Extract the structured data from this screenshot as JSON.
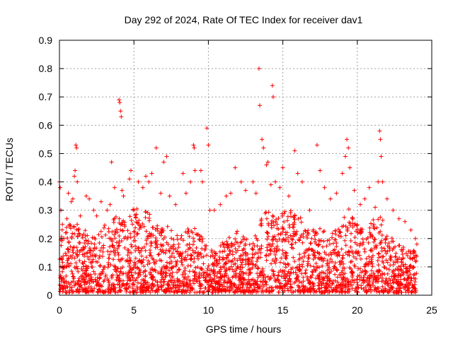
{
  "chart_data": {
    "type": "scatter",
    "title": "Day 292 of 2024, Rate Of TEC Index for receiver dav1",
    "xlabel": "GPS time / hours",
    "ylabel": "ROTI / TECUs",
    "xlim": [
      0,
      25
    ],
    "ylim": [
      0,
      0.9
    ],
    "xticks": [
      "0",
      "5",
      "10",
      "15",
      "20",
      "25"
    ],
    "yticks": [
      "0",
      "0.1",
      "0.2",
      "0.3",
      "0.4",
      "0.5",
      "0.6",
      "0.7",
      "0.8",
      "0.9"
    ],
    "grid": true,
    "marker": "+",
    "color": "#ff0000",
    "points": [
      [
        0.0,
        0.4
      ],
      [
        0.05,
        0.38
      ],
      [
        0.1,
        0.3
      ],
      [
        0.2,
        0.25
      ],
      [
        0.3,
        0.2
      ],
      [
        0.5,
        0.27
      ],
      [
        0.6,
        0.36
      ],
      [
        0.8,
        0.33
      ],
      [
        0.9,
        0.34
      ],
      [
        1.0,
        0.42
      ],
      [
        1.05,
        0.44
      ],
      [
        1.1,
        0.53
      ],
      [
        1.15,
        0.52
      ],
      [
        1.2,
        0.4
      ],
      [
        1.4,
        0.28
      ],
      [
        1.8,
        0.35
      ],
      [
        2.0,
        0.34
      ],
      [
        2.3,
        0.3
      ],
      [
        2.5,
        0.28
      ],
      [
        2.8,
        0.33
      ],
      [
        3.2,
        0.3
      ],
      [
        3.4,
        0.32
      ],
      [
        3.5,
        0.47
      ],
      [
        3.7,
        0.38
      ],
      [
        4.0,
        0.69
      ],
      [
        4.05,
        0.68
      ],
      [
        4.1,
        0.65
      ],
      [
        4.15,
        0.63
      ],
      [
        4.2,
        0.37
      ],
      [
        4.3,
        0.35
      ],
      [
        4.7,
        0.41
      ],
      [
        4.8,
        0.44
      ],
      [
        5.0,
        0.3
      ],
      [
        5.3,
        0.4
      ],
      [
        5.6,
        0.38
      ],
      [
        5.8,
        0.42
      ],
      [
        6.0,
        0.4
      ],
      [
        6.2,
        0.43
      ],
      [
        6.5,
        0.52
      ],
      [
        6.8,
        0.36
      ],
      [
        7.0,
        0.47
      ],
      [
        7.2,
        0.49
      ],
      [
        7.4,
        0.35
      ],
      [
        7.8,
        0.32
      ],
      [
        8.3,
        0.43
      ],
      [
        8.5,
        0.36
      ],
      [
        8.8,
        0.4
      ],
      [
        9.0,
        0.53
      ],
      [
        9.05,
        0.52
      ],
      [
        9.1,
        0.44
      ],
      [
        9.5,
        0.44
      ],
      [
        9.6,
        0.4
      ],
      [
        9.9,
        0.59
      ],
      [
        10.0,
        0.53
      ],
      [
        10.1,
        0.3
      ],
      [
        10.4,
        0.3
      ],
      [
        10.8,
        0.32
      ],
      [
        11.2,
        0.35
      ],
      [
        11.5,
        0.36
      ],
      [
        11.8,
        0.45
      ],
      [
        12.2,
        0.4
      ],
      [
        12.5,
        0.37
      ],
      [
        13.0,
        0.4
      ],
      [
        13.2,
        0.36
      ],
      [
        13.4,
        0.8
      ],
      [
        13.45,
        0.67
      ],
      [
        13.6,
        0.55
      ],
      [
        13.7,
        0.52
      ],
      [
        13.9,
        0.46
      ],
      [
        14.0,
        0.47
      ],
      [
        14.2,
        0.39
      ],
      [
        14.3,
        0.74
      ],
      [
        14.35,
        0.7
      ],
      [
        14.5,
        0.4
      ],
      [
        14.8,
        0.38
      ],
      [
        15.0,
        0.45
      ],
      [
        15.4,
        0.35
      ],
      [
        15.8,
        0.51
      ],
      [
        16.0,
        0.43
      ],
      [
        16.3,
        0.4
      ],
      [
        16.8,
        0.3
      ],
      [
        17.3,
        0.53
      ],
      [
        17.5,
        0.44
      ],
      [
        17.8,
        0.38
      ],
      [
        18.2,
        0.34
      ],
      [
        18.6,
        0.36
      ],
      [
        19.0,
        0.43
      ],
      [
        19.2,
        0.49
      ],
      [
        19.3,
        0.55
      ],
      [
        19.4,
        0.52
      ],
      [
        19.5,
        0.45
      ],
      [
        19.8,
        0.37
      ],
      [
        20.2,
        0.32
      ],
      [
        20.5,
        0.34
      ],
      [
        20.8,
        0.38
      ],
      [
        21.2,
        0.31
      ],
      [
        21.4,
        0.4
      ],
      [
        21.5,
        0.58
      ],
      [
        21.55,
        0.55
      ],
      [
        21.6,
        0.49
      ],
      [
        21.7,
        0.4
      ],
      [
        22.0,
        0.34
      ],
      [
        22.4,
        0.3
      ],
      [
        22.8,
        0.27
      ],
      [
        23.2,
        0.26
      ],
      [
        23.6,
        0.23
      ],
      [
        23.9,
        0.2
      ],
      [
        24.0,
        0.18
      ]
    ],
    "baseline_envelope": [
      [
        0,
        0.22
      ],
      [
        0.5,
        0.24
      ],
      [
        1,
        0.26
      ],
      [
        1.5,
        0.22
      ],
      [
        2,
        0.22
      ],
      [
        2.5,
        0.2
      ],
      [
        3,
        0.24
      ],
      [
        3.5,
        0.28
      ],
      [
        4,
        0.26
      ],
      [
        4.5,
        0.26
      ],
      [
        5,
        0.3
      ],
      [
        5.5,
        0.3
      ],
      [
        6,
        0.28
      ],
      [
        6.5,
        0.26
      ],
      [
        7,
        0.25
      ],
      [
        7.5,
        0.22
      ],
      [
        8,
        0.2
      ],
      [
        8.5,
        0.22
      ],
      [
        9,
        0.24
      ],
      [
        9.5,
        0.2
      ],
      [
        10,
        0.16
      ],
      [
        10.5,
        0.14
      ],
      [
        11,
        0.18
      ],
      [
        11.5,
        0.2
      ],
      [
        12,
        0.22
      ],
      [
        12.5,
        0.2
      ],
      [
        13,
        0.18
      ],
      [
        13.5,
        0.26
      ],
      [
        14,
        0.3
      ],
      [
        14.5,
        0.26
      ],
      [
        15,
        0.28
      ],
      [
        15.5,
        0.3
      ],
      [
        16,
        0.28
      ],
      [
        16.5,
        0.24
      ],
      [
        17,
        0.22
      ],
      [
        17.5,
        0.24
      ],
      [
        18,
        0.2
      ],
      [
        18.5,
        0.22
      ],
      [
        19,
        0.26
      ],
      [
        19.5,
        0.3
      ],
      [
        20,
        0.24
      ],
      [
        20.5,
        0.22
      ],
      [
        21,
        0.26
      ],
      [
        21.5,
        0.3
      ],
      [
        22,
        0.22
      ],
      [
        22.5,
        0.18
      ],
      [
        23,
        0.16
      ],
      [
        23.5,
        0.16
      ],
      [
        24,
        0.15
      ]
    ]
  }
}
